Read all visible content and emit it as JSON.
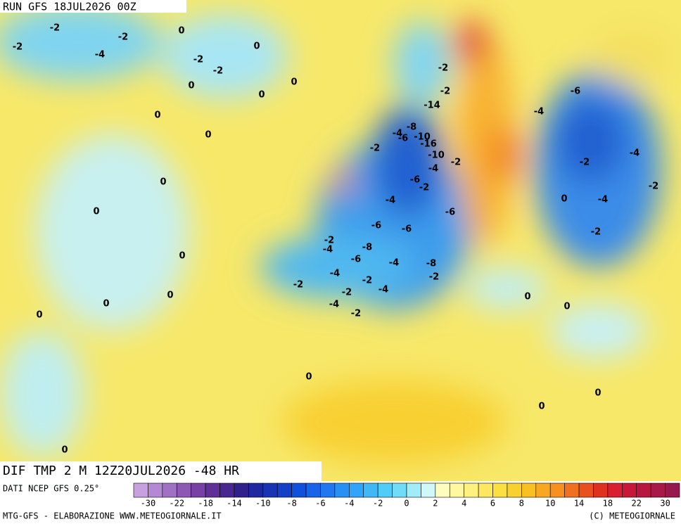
{
  "header": "RUN GFS 18JUL2026 00Z",
  "title": "DIF TMP 2 M 12Z20JUL2026 -48 HR",
  "source": "DATI NCEP GFS 0.25°",
  "credit_left": "MTG-GFS - ELABORAZIONE WWW.METEOGIORNALE.IT",
  "credit_right": "(C) METEOGIORNALE",
  "legend": {
    "colors": [
      "#c8a0e0",
      "#b488d4",
      "#a070c4",
      "#8c58b4",
      "#7840a4",
      "#603098",
      "#482890",
      "#30208c",
      "#2028a0",
      "#1834b4",
      "#1440c8",
      "#1050dc",
      "#1864e8",
      "#2078f0",
      "#2890f4",
      "#30a4f8",
      "#40b8f8",
      "#50ccf8",
      "#70dcf8",
      "#a0ecf8",
      "#d0f8f8",
      "#fffcc0",
      "#fff8a0",
      "#fff080",
      "#ffe860",
      "#fce040",
      "#f8d030",
      "#f8c020",
      "#f8a820",
      "#f89020",
      "#f07020",
      "#e85020",
      "#e03020",
      "#d82030",
      "#c81838",
      "#b81840",
      "#a81848",
      "#981850"
    ],
    "ticks": [
      -30,
      -22,
      -18,
      -14,
      -10,
      -8,
      -6,
      -4,
      -2,
      0,
      2,
      4,
      6,
      8,
      10,
      14,
      18,
      22,
      30
    ]
  },
  "map": {
    "labels": [
      -2,
      -2,
      -2,
      -4,
      0,
      0,
      -2,
      -2,
      0,
      0,
      0,
      0,
      0,
      0,
      0,
      0,
      0,
      0,
      0,
      -2,
      -4,
      -6,
      -14,
      -8,
      -10,
      -16,
      -10,
      -4,
      -2,
      -6,
      -2,
      -4,
      -6,
      -8,
      -6,
      -4,
      -2,
      -4,
      -2,
      -4,
      -6,
      -8,
      -2,
      -4,
      -2,
      -2,
      -2,
      -4,
      -6,
      -2,
      -2,
      -6,
      -4,
      -2,
      -4,
      -4,
      -2,
      -2,
      0,
      0,
      0,
      0,
      0,
      0,
      0
    ]
  }
}
